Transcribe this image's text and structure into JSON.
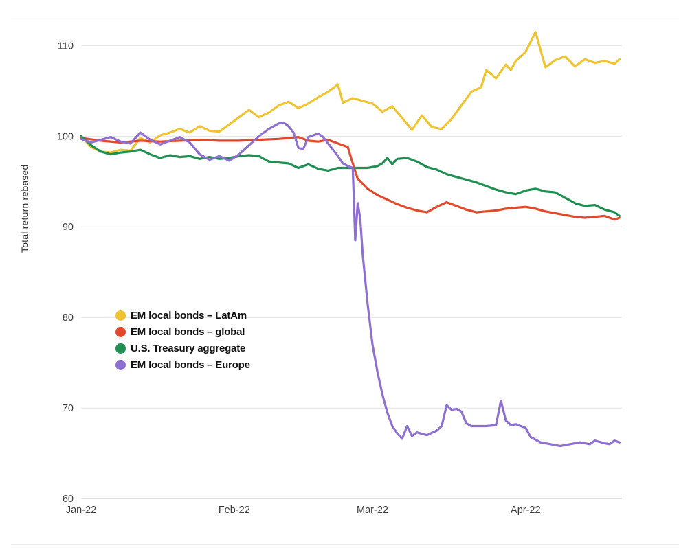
{
  "page": {
    "background": "#ffffff"
  },
  "chart_data": {
    "type": "line",
    "title": "",
    "xlabel": "",
    "ylabel": "Total return rebased",
    "grid": "horizontal",
    "legend_position": "inside-left-middle",
    "y_axis": {
      "ticks": [
        60,
        70,
        80,
        90,
        100,
        110
      ],
      "range": [
        60,
        112
      ]
    },
    "x_axis": {
      "range": [
        0,
        109.5
      ],
      "ticks": [
        {
          "label": "Jan-22",
          "x": 0
        },
        {
          "label": "Feb-22",
          "x": 31
        },
        {
          "label": "Mar-22",
          "x": 59
        },
        {
          "label": "Apr-22",
          "x": 90
        }
      ]
    },
    "series": [
      {
        "name": "EM local bonds – LatAm",
        "color": "#f0c330",
        "x": [
          0,
          2,
          4,
          6,
          8,
          10,
          12,
          14,
          16,
          18,
          20,
          22,
          24,
          26,
          28,
          30,
          32,
          34,
          36,
          38,
          40,
          42,
          44,
          46,
          48,
          50,
          52,
          53,
          55,
          57,
          59,
          61,
          63,
          65,
          67,
          69,
          71,
          73,
          75,
          77,
          79,
          81,
          82,
          84,
          86,
          87,
          88,
          90,
          92,
          94,
          96,
          98,
          100,
          102,
          104,
          106,
          108,
          109
        ],
        "values": [
          100,
          98.8,
          98.3,
          98.2,
          98.5,
          98.4,
          99.8,
          99.3,
          100.1,
          100.4,
          100.8,
          100.4,
          101.1,
          100.6,
          100.5,
          101.3,
          102.1,
          102.9,
          102.1,
          102.6,
          103.4,
          103.8,
          103.1,
          103.6,
          104.3,
          104.9,
          105.7,
          103.7,
          104.2,
          103.9,
          103.6,
          102.7,
          103.3,
          102.0,
          100.7,
          102.3,
          101.0,
          100.8,
          101.9,
          103.4,
          104.9,
          105.4,
          107.3,
          106.4,
          107.9,
          107.3,
          108.3,
          109.3,
          111.5,
          107.6,
          108.4,
          108.8,
          107.7,
          108.5,
          108.1,
          108.3,
          108.0,
          108.5
        ]
      },
      {
        "name": "EM local bonds – global",
        "color": "#e0492b",
        "x": [
          0,
          4,
          8,
          12,
          16,
          20,
          24,
          28,
          32,
          36,
          40,
          44,
          46,
          48,
          50,
          52,
          54,
          55,
          56,
          58,
          60,
          62,
          64,
          66,
          68,
          70,
          72,
          74,
          76,
          78,
          80,
          82,
          84,
          86,
          88,
          90,
          92,
          94,
          96,
          98,
          100,
          102,
          104,
          106,
          108,
          109
        ],
        "values": [
          99.8,
          99.5,
          99.3,
          99.5,
          99.4,
          99.5,
          99.6,
          99.5,
          99.5,
          99.6,
          99.7,
          99.9,
          99.5,
          99.4,
          99.6,
          99.2,
          98.8,
          97.0,
          95.3,
          94.2,
          93.5,
          93.0,
          92.5,
          92.1,
          91.8,
          91.6,
          92.2,
          92.7,
          92.3,
          91.9,
          91.6,
          91.7,
          91.8,
          92.0,
          92.1,
          92.2,
          92.0,
          91.7,
          91.5,
          91.3,
          91.1,
          91.0,
          91.1,
          91.2,
          90.8,
          91.0
        ]
      },
      {
        "name": "U.S. Treasury aggregate",
        "color": "#1f8f52",
        "x": [
          0,
          2,
          4,
          6,
          8,
          10,
          12,
          14,
          16,
          18,
          20,
          22,
          24,
          26,
          28,
          30,
          32,
          34,
          36,
          38,
          40,
          42,
          44,
          46,
          48,
          50,
          52,
          54,
          56,
          58,
          60,
          61,
          62,
          63,
          64,
          66,
          68,
          70,
          72,
          74,
          76,
          78,
          80,
          82,
          84,
          86,
          88,
          90,
          92,
          94,
          96,
          98,
          100,
          102,
          104,
          106,
          108,
          109
        ],
        "values": [
          100,
          99.0,
          98.3,
          98.0,
          98.2,
          98.3,
          98.5,
          98.0,
          97.6,
          97.9,
          97.7,
          97.8,
          97.5,
          97.7,
          97.5,
          97.6,
          97.8,
          97.9,
          97.8,
          97.2,
          97.1,
          97.0,
          96.5,
          96.9,
          96.4,
          96.2,
          96.5,
          96.5,
          96.5,
          96.5,
          96.7,
          97.0,
          97.6,
          96.9,
          97.5,
          97.6,
          97.2,
          96.6,
          96.3,
          95.8,
          95.5,
          95.2,
          94.9,
          94.5,
          94.1,
          93.8,
          93.6,
          94.0,
          94.2,
          93.9,
          93.8,
          93.2,
          92.6,
          92.3,
          92.4,
          91.9,
          91.6,
          91.2
        ]
      },
      {
        "name": "EM local bonds – Europe",
        "color": "#8d70cf",
        "x": [
          0,
          2,
          4,
          6,
          8,
          10,
          12,
          14,
          16,
          18,
          20,
          22,
          24,
          26,
          28,
          30,
          32,
          34,
          36,
          38,
          40,
          41,
          42,
          43,
          44,
          45,
          46,
          48,
          49,
          50,
          52,
          53,
          54,
          55,
          55.5,
          56,
          56.5,
          57,
          58,
          59,
          60,
          61,
          62,
          63,
          64,
          65,
          66,
          67,
          68,
          70,
          72,
          73,
          74,
          75,
          76,
          77,
          78,
          79,
          80,
          82,
          84,
          85,
          86,
          87,
          88,
          90,
          91,
          93,
          95,
          97,
          99,
          101,
          103,
          104,
          106,
          107,
          108,
          109
        ],
        "values": [
          99.7,
          99.3,
          99.6,
          99.9,
          99.4,
          99.2,
          100.4,
          99.6,
          99.1,
          99.5,
          99.9,
          99.3,
          98.0,
          97.4,
          97.8,
          97.3,
          98.0,
          99.0,
          100.0,
          100.8,
          101.4,
          101.5,
          101.1,
          100.4,
          98.7,
          98.6,
          99.9,
          100.3,
          99.9,
          99.2,
          97.8,
          97.0,
          96.7,
          96.5,
          88.5,
          92.6,
          91.0,
          87.0,
          81.5,
          77.0,
          74.0,
          71.5,
          69.5,
          68.0,
          67.2,
          66.6,
          68.0,
          66.9,
          67.3,
          67.0,
          67.5,
          68.0,
          70.3,
          69.8,
          69.9,
          69.6,
          68.3,
          68.0,
          68.0,
          68.0,
          68.1,
          70.8,
          68.6,
          68.1,
          68.2,
          67.8,
          66.8,
          66.2,
          66.0,
          65.8,
          66.0,
          66.2,
          66.0,
          66.4,
          66.1,
          66.0,
          66.4,
          66.2
        ]
      }
    ]
  },
  "legend": {
    "items": [
      {
        "label": "EM local bonds – LatAm"
      },
      {
        "label": "EM local bonds – global"
      },
      {
        "label": "U.S. Treasury aggregate"
      },
      {
        "label": "EM local bonds – Europe"
      }
    ]
  }
}
